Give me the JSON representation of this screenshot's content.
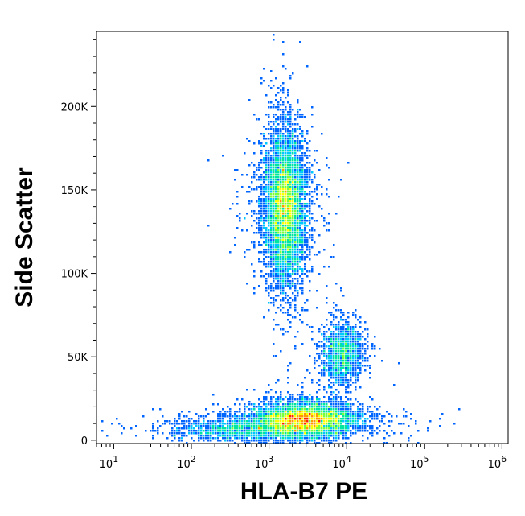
{
  "chart_data": {
    "type": "scatter",
    "subtype": "flow-cytometry density dot plot",
    "xlabel": "HLA-B7 PE",
    "ylabel": "Side Scatter",
    "x_scale": "log",
    "xlim": [
      6,
      1200000
    ],
    "ylim": [
      -2000,
      245000
    ],
    "x_ticks": [
      {
        "value": 10,
        "base": "10",
        "exp": "1"
      },
      {
        "value": 100,
        "base": "10",
        "exp": "2"
      },
      {
        "value": 1000,
        "base": "10",
        "exp": "3"
      },
      {
        "value": 10000,
        "base": "10",
        "exp": "4"
      },
      {
        "value": 100000,
        "base": "10",
        "exp": "5"
      },
      {
        "value": 1000000,
        "base": "10",
        "exp": "6"
      }
    ],
    "y_ticks": [
      {
        "value": 0,
        "label": "0"
      },
      {
        "value": 50000,
        "label": "50K"
      },
      {
        "value": 100000,
        "label": "100K"
      },
      {
        "value": 150000,
        "label": "150K"
      },
      {
        "value": 200000,
        "label": "200K"
      }
    ],
    "grid": false,
    "legend": "none",
    "color_scale": [
      "#0000cc",
      "#0066ff",
      "#00c8ff",
      "#00e6a0",
      "#7aff3c",
      "#ffff00",
      "#ff9900",
      "#ff2200"
    ],
    "populations": [
      {
        "x_center": 1600,
        "y_center": 140000,
        "log_x_spread": 0.13,
        "y_spread": 22000,
        "count": 6000
      },
      {
        "x_center": 9000,
        "y_center": 52000,
        "log_x_spread": 0.13,
        "y_spread": 9000,
        "count": 1300
      },
      {
        "x_center": 2800,
        "y_center": 12000,
        "log_x_spread": 0.32,
        "y_spread": 5000,
        "count": 5200
      },
      {
        "x_center": 400,
        "y_center": 6000,
        "log_x_spread": 0.45,
        "y_spread": 3500,
        "count": 1200
      }
    ]
  }
}
